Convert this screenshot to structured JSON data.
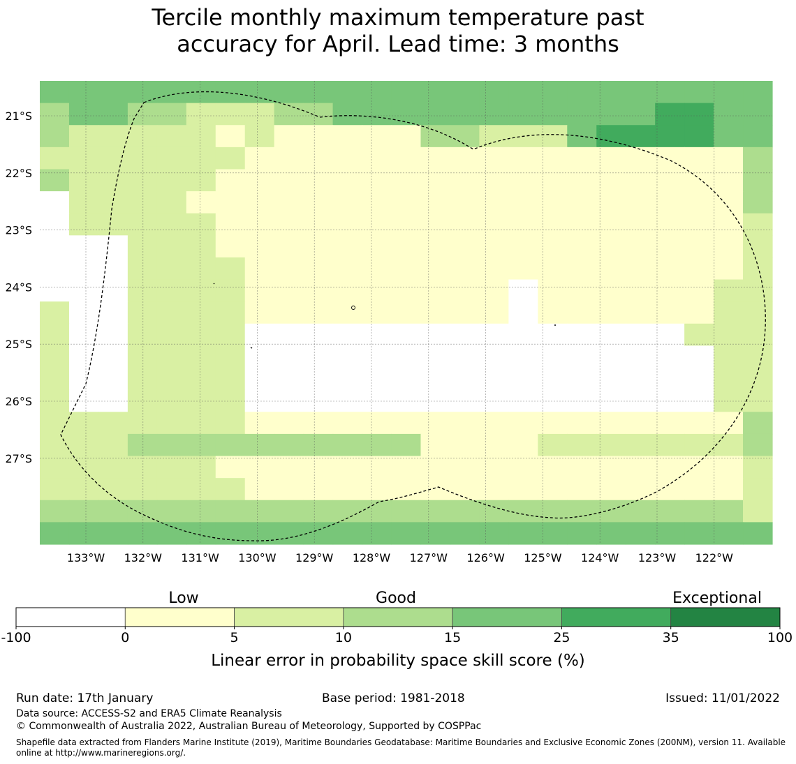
{
  "title": {
    "line1": "Tercile monthly maximum temperature past",
    "line2": "accuracy for April. Lead time: 3 months"
  },
  "map": {
    "lon_ticks": [
      "133°W",
      "132°W",
      "131°W",
      "130°W",
      "129°W",
      "128°W",
      "127°W",
      "126°W",
      "125°W",
      "124°W",
      "123°W",
      "122°W"
    ],
    "lat_ticks": [
      "21°S",
      "22°S",
      "23°S",
      "24°S",
      "25°S",
      "26°S",
      "27°S"
    ],
    "grid_categories": [
      "4444444444444444444444444",
      "3443322233444444444445544",
      "3222221211111332224555544",
      "2222222111111111111111113",
      "3222221111111111111111113",
      "0222211111111111111111113",
      "0222221111111111111111112",
      "0002221111111111111111112",
      "0002222111111111111111112",
      "0002222111111111011111122",
      "2002222111111111011111122",
      "2002222000000000000000222",
      "2002222000000000000000022",
      "2002222000000000000000022",
      "2002222000000000000000022",
      "2222222111111111111111113",
      "2223333333333111122222223",
      "2222221111111111111111112",
      "2222222111111111111111112",
      "3333333333333333333333332",
      "4444444444444444444444444"
    ]
  },
  "legend": {
    "category_labels": [
      "Low",
      "Good",
      "Exceptional"
    ],
    "bins": [
      {
        "from": "-100",
        "to": "0",
        "color": "#ffffff"
      },
      {
        "from": "0",
        "to": "5",
        "color": "#ffffcc"
      },
      {
        "from": "5",
        "to": "10",
        "color": "#d9f0a3"
      },
      {
        "from": "10",
        "to": "15",
        "color": "#addd8e"
      },
      {
        "from": "15",
        "to": "25",
        "color": "#78c679"
      },
      {
        "from": "25",
        "to": "35",
        "color": "#41ab5d"
      },
      {
        "from": "35",
        "to": "100",
        "color": "#238443"
      }
    ],
    "tick_labels": [
      "-100",
      "0",
      "5",
      "10",
      "15",
      "25",
      "35",
      "100"
    ],
    "axis_label": "Linear error in probability space skill score (%)"
  },
  "footer": {
    "run_date": "Run date: 17th January",
    "base_period": "Base period: 1981-2018",
    "issued": "Issued: 11/01/2022",
    "data_source": "Data source: ACCESS-S2 and ERA5 Climate Reanalysis",
    "copyright": "© Commonwealth of Australia 2022, Australian Bureau of Meteorology, Supported by COSPPac",
    "shapefile_line1": "Shapefile data extracted from Flanders Marine Institute (2019), Maritime Boundaries Geodatabase: Maritime Boundaries and Exclusive Economic Zones (200NM), version 11. Available",
    "shapefile_line2": "online at http://www.marineregions.org/."
  },
  "colors": {
    "grid_line": "#555555",
    "boundary": "#000000"
  }
}
